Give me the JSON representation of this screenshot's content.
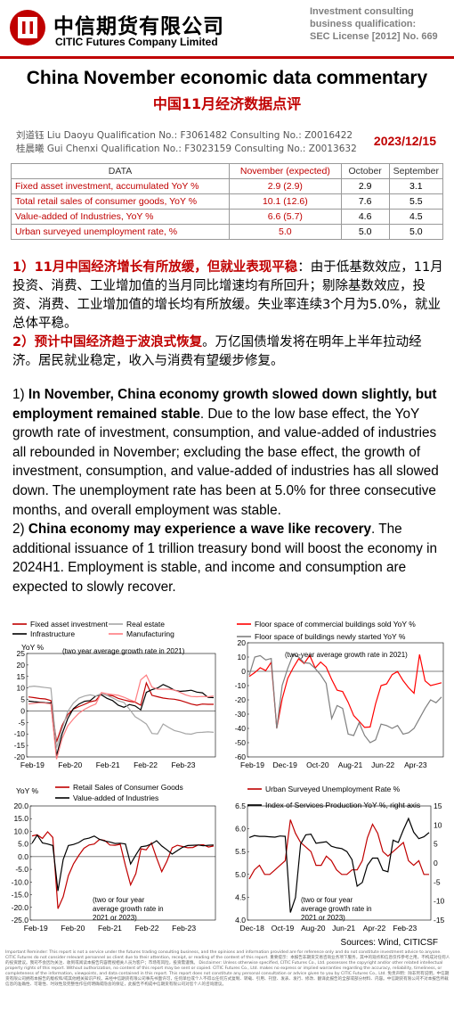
{
  "header": {
    "brand_cn": "中信期货有限公司",
    "brand_en": "CITIC Futures Company Limited",
    "license_1": "Investment consulting",
    "license_2": "business qualification:",
    "license_3": "SEC License [2012] No. 669"
  },
  "title_en": "China November economic data commentary",
  "title_cn": "中国11月经济数据点评",
  "authors": {
    "line1": "刘道钰  Liu Daoyu  Qualification No.: F3061482  Consulting No.: Z0016422",
    "line2": "桂晨曦  Gui Chenxi  Qualification No.: F3023159  Consulting No.: Z0013632"
  },
  "date": "2023/12/15",
  "table": {
    "headers": [
      "DATA",
      "November (expected)",
      "October",
      "September"
    ],
    "rows": [
      {
        "label": "Fixed asset investment, accumulated YoY %",
        "nov": "2.9 (2.9)",
        "oct": "2.9",
        "sep": "3.1"
      },
      {
        "label": "Total retail sales of consumer goods, YoY %",
        "nov": "10.1 (12.6)",
        "oct": "7.6",
        "sep": "5.5"
      },
      {
        "label": "Value-added of Industries, YoY %",
        "nov": "6.6 (5.7)",
        "oct": "4.6",
        "sep": "4.5"
      },
      {
        "label": "Urban surveyed unemployment rate, %",
        "nov": "5.0",
        "oct": "5.0",
        "sep": "5.0"
      }
    ]
  },
  "cn": {
    "p1_num": "1）",
    "p1_hl": "11月中国经济增长有所放缓，但就业表现平稳",
    "p1_body": "：由于低基数效应，11月投资、消费、工业增加值的当月同比增速均有所回升；剔除基数效应，投资、消费、工业增加值的增长均有所放缓。失业率连续3个月为5.0%，就业总体平稳。",
    "p2_num": "2）",
    "p2_hl": "预计中国经济趋于波浪式恢复",
    "p2_body": "。万亿国债增发将在明年上半年拉动经济。居民就业稳定，收入与消费有望缓步修复。"
  },
  "en": {
    "p1_num": "1) ",
    "p1_bold": "In November, China economy growth slowed down slightly, but employment remained stable",
    "p1_body": ". Due to the low base effect, the YoY growth rate of investment, consumption, and value-added of industries all rebounded in November; excluding the base effect, the growth of investment, consumption, and value-added of industries has all slowed down. The unemployment rate has been at 5.0% for three consecutive months, and overall employment was stable.",
    "p2_num": "2) ",
    "p2_bold": "China economy may experience a wave like recovery",
    "p2_body": ". The additional issuance of 1 trillion treasury bond will boost the economy in 2024H1. Employment is stable, and income and consumption are expected to slowly recover."
  },
  "chart_data": [
    {
      "type": "line",
      "ylabel": "YoY %",
      "annotation": "(two year average growth rate in 2021)",
      "ylim": [
        -20,
        25
      ],
      "yticks": [
        "25",
        "20",
        "15",
        "10",
        "5",
        "0",
        "-5",
        "-10",
        "-15",
        "-20"
      ],
      "xticks": [
        "Feb-19",
        "Feb-20",
        "Feb-21",
        "Feb-22",
        "Feb-23"
      ],
      "series": [
        {
          "name": "Fixed asset investment",
          "color": "#c00000",
          "values": [
            6.1,
            5.8,
            5.4,
            5.2,
            4.5,
            -13.5,
            -6.3,
            -1.6,
            0.8,
            1.9,
            2.9,
            4.0,
            4.5,
            7.5,
            6.8,
            6.6,
            5.5,
            4.8,
            4.2,
            3.8,
            2.5,
            12.2,
            6.8,
            6.2,
            5.6,
            5.3,
            5.1,
            4.6,
            3.8,
            3.0,
            2.5,
            3.0,
            2.9,
            2.9
          ]
        },
        {
          "name": "Infrastructure",
          "color": "#000000",
          "values": [
            4.3,
            4.0,
            3.8,
            3.6,
            3.5,
            -19.5,
            -10.0,
            -3.3,
            1.0,
            3.0,
            4.2,
            4.5,
            6.5,
            7.0,
            5.5,
            4.5,
            2.5,
            1.6,
            2.8,
            2.2,
            0.5,
            8.1,
            9.3,
            10.0,
            11.5,
            10.4,
            9.0,
            8.5,
            8.7,
            9.0,
            8.2,
            7.9,
            5.9,
            5.8
          ]
        },
        {
          "name": "Real estate",
          "color": "#a6a6a6",
          "values": [
            10.5,
            10.8,
            10.5,
            10.2,
            9.9,
            -16.0,
            -7.7,
            -0.3,
            3.4,
            5.6,
            6.5,
            7.0,
            6.5,
            7.6,
            6.8,
            5.7,
            4.4,
            3.7,
            0.7,
            -2.5,
            -4.0,
            -5.7,
            -9.8,
            -10.0,
            -5.7,
            -7.2,
            -8.5,
            -9.1,
            -9.9,
            -10.1,
            -9.4,
            -9.3,
            -9.1,
            -9.3
          ]
        },
        {
          "name": "Manufacturing",
          "color": "#ff7c80",
          "values": [
            3.0,
            3.3,
            3.6,
            3.4,
            3.1,
            -21.0,
            -12.0,
            -6.5,
            -3.5,
            -1.0,
            0.7,
            2.0,
            3.0,
            8.0,
            7.5,
            7.1,
            6.8,
            6.0,
            4.9,
            4.0,
            13.5,
            15.6,
            10.4,
            9.5,
            9.5,
            9.5,
            9.1,
            8.1,
            7.0,
            6.3,
            6.2,
            6.3,
            6.2,
            6.5
          ]
        }
      ]
    },
    {
      "type": "line",
      "annotation": "(two-year average growth rate in 2021)",
      "ylim": [
        -60,
        20
      ],
      "yticks": [
        "20",
        "10",
        "0",
        "-10",
        "-20",
        "-30",
        "-40",
        "-50",
        "-60"
      ],
      "xticks": [
        "Feb-19",
        "Dec-19",
        "Oct-20",
        "Aug-21",
        "Jun-22",
        "Apr-23"
      ],
      "series": [
        {
          "name": "Floor space of commercial buildings sold  YoY %",
          "color": "#ff0000",
          "values": [
            -3.6,
            -0.9,
            2.5,
            0.5,
            6.4,
            -39.9,
            -19.3,
            -5.0,
            2.5,
            8.8,
            5.5,
            11.2,
            2.4,
            6.5,
            3.0,
            -5.7,
            -13.2,
            -14.2,
            -21.7,
            -31.0,
            -35.0,
            -39.3,
            -39.0,
            -22.8,
            -10.0,
            -8.8,
            -2.3,
            -0.1,
            -6.5,
            -11.5,
            -15.4,
            11.8,
            -6.7,
            -10.0,
            -9.0,
            -8.0
          ]
        },
        {
          "name": "Floor space of buildings newly started  YoY %",
          "color": "#7f7f7f",
          "values": [
            -2.7,
            10.0,
            11.0,
            8.0,
            9.0,
            -40.1,
            -9.9,
            2.0,
            12.0,
            10.0,
            6.0,
            5.6,
            2.0,
            -2.5,
            -8.5,
            -33.1,
            -24.0,
            -26.0,
            -44.0,
            -45.0,
            -36.0,
            -45.0,
            -50.0,
            -48.0,
            -37.0,
            -38.0,
            -40.0,
            -38.0,
            -44.0,
            -43.0,
            -40.0,
            -33.0,
            -26.0,
            -20.0,
            -22.0,
            -18.0
          ]
        }
      ]
    },
    {
      "type": "line",
      "ylabel": "YoY %",
      "annotation": "(two or four year average growth rate in 2021 or 2023)",
      "ylim": [
        -25,
        20
      ],
      "yticks": [
        "20.0",
        "15.0",
        "10.0",
        "5.0",
        "0.0",
        "-5.0",
        "-10.0",
        "-15.0",
        "-20.0",
        "-25.0"
      ],
      "xticks": [
        "Feb-19",
        "Feb-20",
        "Feb-21",
        "Feb-22",
        "Feb-23"
      ],
      "series": [
        {
          "name": "Retail Sales of Consumer Goods",
          "color": "#c00000",
          "values": [
            8.2,
            8.6,
            7.2,
            9.8,
            7.6,
            -20.5,
            -15.8,
            -7.5,
            -2.8,
            0.5,
            3.3,
            4.6,
            5.0,
            6.8,
            6.4,
            4.6,
            4.5,
            4.9,
            -3.5,
            -11.1,
            -6.7,
            3.1,
            2.7,
            5.4,
            -0.5,
            -5.9,
            -1.8,
            3.5,
            4.5,
            4.0,
            3.5,
            3.6,
            4.6,
            4.7,
            3.8,
            4.2
          ]
        },
        {
          "name": "Value-added of Industries",
          "color": "#000000",
          "values": [
            5.3,
            8.5,
            5.4,
            5.0,
            4.4,
            -13.5,
            -1.1,
            4.4,
            4.8,
            5.6,
            6.9,
            7.3,
            8.1,
            6.8,
            6.2,
            5.8,
            5.2,
            5.3,
            5.0,
            -2.9,
            0.7,
            3.9,
            4.2,
            5.0,
            6.3,
            4.2,
            2.7,
            1.0,
            2.4,
            3.7,
            4.4,
            4.5,
            4.6,
            4.3,
            4.5,
            4.6
          ]
        }
      ]
    },
    {
      "type": "line",
      "annotation": "(two or four year average growth rate in 2021 or 2023)",
      "ylim": [
        4.0,
        6.5
      ],
      "yticks": [
        "6.5",
        "6.0",
        "5.5",
        "5.0",
        "4.5",
        "4.0"
      ],
      "y2lim": [
        -15,
        15
      ],
      "y2ticks": [
        "15",
        "10",
        "5",
        "0",
        "-5",
        "-10",
        "-15"
      ],
      "xticks": [
        "Dec-18",
        "Oct-19",
        "Aug-20",
        "Jun-21",
        "Apr-22",
        "Feb-23"
      ],
      "series": [
        {
          "name": "Urban Surveyed Unemployment Rate %",
          "color": "#c00000",
          "values": [
            4.9,
            5.1,
            5.2,
            5.0,
            5.0,
            5.1,
            5.2,
            5.3,
            6.2,
            5.9,
            5.7,
            5.6,
            5.5,
            5.2,
            5.2,
            5.4,
            5.3,
            5.1,
            5.0,
            5.0,
            5.1,
            5.1,
            5.3,
            5.8,
            6.1,
            5.9,
            5.5,
            5.4,
            5.5,
            5.6,
            5.7,
            5.3,
            5.2,
            5.3,
            5.0,
            5.0
          ]
        },
        {
          "name": "Index of Services Production YoY %, right axis",
          "color": "#000000",
          "values": [
            6.7,
            7.2,
            7.0,
            7.0,
            6.9,
            6.8,
            7.1,
            7.0,
            -13.0,
            -9.1,
            5.0,
            7.4,
            7.6,
            5.2,
            5.4,
            5.6,
            4.4,
            4.0,
            3.8,
            3.0,
            0.9,
            -6.1,
            -5.1,
            -0.6,
            1.3,
            1.3,
            -1.9,
            -2.3,
            6.0,
            5.4,
            8.7,
            11.7,
            8.1,
            6.4,
            6.9,
            8.0
          ]
        }
      ]
    }
  ],
  "source": "Sources: Wind, CITICSF",
  "disclaimer": "Important Reminder: This report is not a service under the futures trading consulting business, and the opinions and information provided are for reference only and do not constitute investment advice to anyone. CITIC Futures do not consider relevant personnel as client due to their attention, receipt, or reading of the content of this report. 重要提示：本报告非期货交易咨询业务项下服务，其中的观点和信息仅作参考之用，不构成对任何人的投资建议。我司不会因为关注、收到或阅读本报告内容而视相关人员为客户；市场有风险，投资需谨慎。 Disclaimer: Unless otherwise specified, CITIC Futures Co., Ltd. possesses the copyright and/or other related intellectual property rights of this report. Without authorization, no content of this report may be sent or copied. CITIC Futures Co., Ltd. makes no express or implied warranties regarding the accuracy, reliability, timeliness, or completeness of the information, viewpoints, and data contained in this report. This report does not constitute any personal consultation or advice given to you by CITIC Futures Co., Ltd. 免责声明：除非另有说明，中信期货有限公司拥有本报告的版权和/或其他相关知识产权。未经中信期货有限公司事先书面许可，任何单位或个人不得以任何方式复制、转载、引用、刊登、发表、发行、修改、翻译此报告的全部或部分材料、内容。中信期货有限公司不对本报告所载信息的准确性、可靠性、时效性及完整性作任何明确或隐含的保证，此报告不构成中信期货有限公司对您个人的咨询建议。"
}
